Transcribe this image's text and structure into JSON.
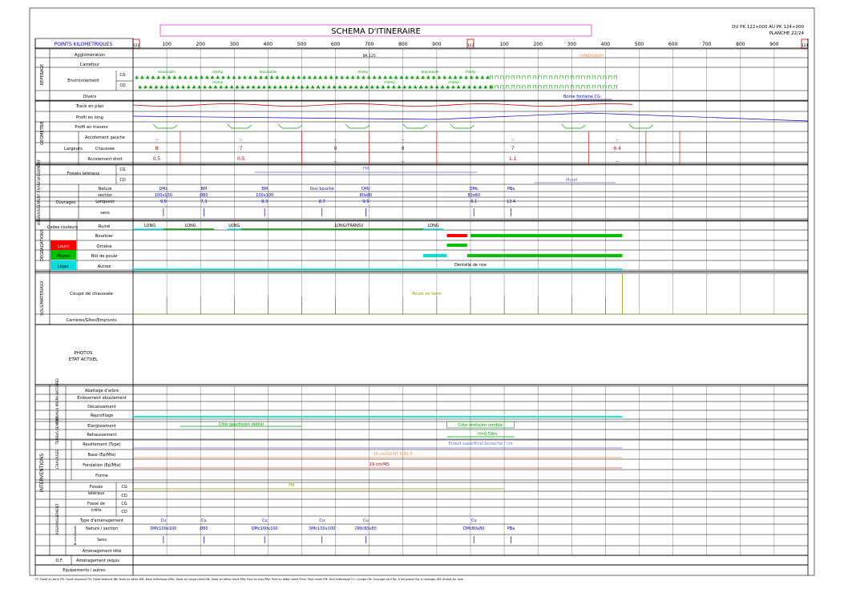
{
  "title": "SCHEMA  D'ITINERAIRE",
  "pk_range": "DU  PK  122+000  AU  PK  124+000",
  "planche": "PLANCHE  22/24",
  "points_km_label": "POINTS  KILOMETRIQUES",
  "pk_ticks": [
    "100",
    "200",
    "300",
    "400",
    "500",
    "600",
    "700",
    "800",
    "900",
    "100",
    "200",
    "300",
    "400",
    "500",
    "600",
    "700",
    "800",
    "900"
  ],
  "pk_markers": [
    "122",
    "123",
    "124"
  ],
  "sections": {
    "reperage": "REPERAGE",
    "geometrie": "GEOMETRIE",
    "assainissement": "ASSAINISSEMENT FRANCHISSEMENT",
    "degradations": "DEGRADATIONS",
    "sols": "SOLS/MATERIAUX",
    "interventions": "INTERVENTIONS",
    "travaux_prep": "TRAVAUX PREPA-RATOIRES",
    "terrassement": "TERRAS-SEMENT",
    "chaussee": "CHAUSSEE",
    "assain2": "ASSAINISSEMENT",
    "buses": "Buses/Dalots"
  },
  "rows": {
    "agglomeration": "Agglomération",
    "carrefour": "Carrefour",
    "environnement": "Environnement",
    "divers": "Divers",
    "trace": "Tracé  en  plan",
    "profil_long": "Profil  en  long",
    "profil_travers": "Profil  en  travers",
    "largeurs": "Largeurs",
    "acc_gauche": "Accotement  gauche",
    "chaussee": "Chaussée",
    "acc_droit": "Accotement  droit",
    "fosses": "Fossés  latéraux",
    "ouvrages": "Ouvrages",
    "nature": "Nature",
    "section": "section",
    "longueur": "Longueur",
    "sens": "sens",
    "codes": "Codes couleurs",
    "lourd": "Lourd",
    "moyen": "Moyen",
    "leger": "Léger",
    "ruine": "Ruiné",
    "bourbier": "Bourbier",
    "orniere": "Ornière",
    "nid": "Nid  de  poule",
    "autres": "Autres",
    "coupe": "Coupe  de  chaussée",
    "carrieres": "Carrières/Gîtes/Emprunts",
    "photos1": "PHOTOS",
    "photos2": "ETAT  ACTUEL",
    "abattage": "Abattage  d'arbre",
    "enlevement": "Enlèvement  éboulement",
    "decaissement": "Décaissement",
    "reprofilage": "Reprofilage",
    "elargissement": "Elargissement",
    "rehaussement": "Rehaussement",
    "revetement": "Revêtement  (Type)",
    "base": "Base  (Ep/Mtx)",
    "fondation": "Fondation  (Ep/Mtx)",
    "forme": "Forme",
    "fosses2a": "Fossés",
    "fosses2b": "latéraux",
    "fosse_crete_a": "Fossé  de",
    "fosse_crete_b": "crête",
    "type_amen": "Type  d'aménagement",
    "nature_section": "Nature  /  section",
    "sens2": "Sens",
    "amen_tete": "Aménagement  tête",
    "of": "O.F.",
    "amen_requis": "Aménagement  requis",
    "equipements": "Equipements  /  autres",
    "cg": "CG",
    "cd": "CD"
  },
  "annotations": {
    "bk": "BK.125",
    "ambohibary": "AMBOHIBARY",
    "borne": "Borne  fontaine  CG",
    "broussaille": "broussaille",
    "champ": "champ",
    "acc_g_vals": [
      "_",
      "_",
      "_",
      "_",
      "_",
      "_",
      "_"
    ],
    "chaussee_vals": [
      "8",
      "7",
      "8",
      "8",
      "7",
      "6.4"
    ],
    "acc_d_vals": [
      "0.5",
      "0.5",
      "_",
      "_",
      "1.1",
      "_"
    ],
    "fm": "FM",
    "muret": "Muret",
    "ouv_nature": [
      "DMc",
      "BM",
      "BM",
      "Ouv  bouché",
      "DMc",
      "DMc",
      "PBa"
    ],
    "ouv_section": [
      "100x100",
      "Ø80",
      "100x100",
      "",
      "80x80",
      "80x80",
      ""
    ],
    "ouv_longueur": [
      "9.5",
      "7.3",
      "8.3",
      "8.7",
      "9.5",
      "6.1",
      "13.4"
    ],
    "long": "LONG",
    "long_transv": "LONG/TRANSV",
    "dentelle": "Dentelle  de  rive",
    "route_terre": "Route  en  terre",
    "elarg_g": "Côté  gauche/en  déblai",
    "elarg_d": "Côté  droite/en  remblai",
    "rehauss": "H=0,50m",
    "enduit": "Enduit  superficiel  bicouche  /  cm",
    "base_val": "15  cm/GCNT  0/31,5",
    "fond_val": "19  cm/MS",
    "cu": "Cu",
    "nat_sec2": [
      "DMc100x100",
      "Ø80",
      "DMc100x100",
      "DMc100x100",
      "DMc80x80",
      "DMc80x80",
      "PBa"
    ]
  },
  "legend": "FT:  Fossé  en  terre    FM:  Fossé  maçonné    FB:  Fossé  bétonné    BB:  Buse  en  béton    BM:  Buse  métallique    DMc:  Dalot  en  maçonnerie    DB:  Dalot  en  béton  armé    PBo:  Pont  en  bois    PBa:  Pont  en  béton  armé    Pmix:  Pont  mixte    PM:  Pont  métallique    Cu:  Curage    ON:  Ouvrage  neuf    Rp:  A  remplacer    Rg:  A  rallonger    AM:  Amont    AV:  Aval",
  "colors": {
    "lourd": "#ff0000",
    "moyen": "#00c000",
    "leger": "#00e0e0",
    "frame": "#000000",
    "title_box": "#cc00cc",
    "blue": "#0000cc",
    "red": "#cc0000",
    "green": "#00a000",
    "olive": "#999900",
    "purple": "#6666cc",
    "orange": "#ff8040"
  }
}
